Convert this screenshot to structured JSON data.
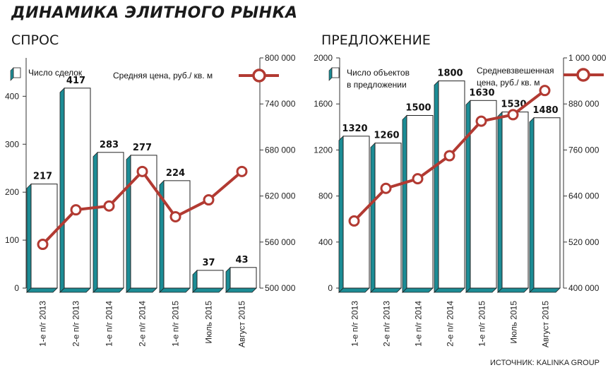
{
  "title": "ДИНАМИКА ЭЛИТНОГО РЫНКА",
  "source": "ИСТОЧНИК: KALINKA GROUP",
  "colors": {
    "bar_fill": "#ffffff",
    "bar_side": "#1c8c95",
    "bar_stroke": "#222222",
    "line": "#b23a32",
    "marker_fill": "#ffffff"
  },
  "chart_data": [
    {
      "type": "bar",
      "title": "СПРОС",
      "categories": [
        "1-е п/г 2013",
        "2-е п/г 2013",
        "1-е п/г 2014",
        "2-е п/г 2014",
        "1-е п/г 2015",
        "Июль 2015",
        "Август 2015"
      ],
      "left_ticks": [
        "0",
        "100",
        "200",
        "300",
        "400"
      ],
      "right_ticks": [
        "500 000",
        "560 000",
        "620 000",
        "680 000",
        "740 000",
        "800 000"
      ],
      "ylim_left": [
        0,
        480
      ],
      "ylim_right": [
        500000,
        800000
      ],
      "series": [
        {
          "name": "Число сделок",
          "type": "bar",
          "axis": "left",
          "values": [
            217,
            417,
            283,
            277,
            224,
            37,
            43
          ],
          "labels": [
            "217",
            "417",
            "283",
            "277",
            "224",
            "37",
            "43"
          ]
        },
        {
          "name": "Средняя цена, руб./ кв. м",
          "type": "line",
          "axis": "right",
          "values": [
            557000,
            602000,
            607000,
            652000,
            593000,
            615000,
            652000
          ]
        }
      ],
      "legend": [
        {
          "lines": [
            "Число сделок"
          ]
        },
        {
          "lines": [
            "Средняя цена, руб./ кв. м"
          ]
        }
      ]
    },
    {
      "type": "bar",
      "title": "ПРЕДЛОЖЕНИЕ",
      "categories": [
        "1-е п/г 2013",
        "2-е п/г 2013",
        "1-е п/г 2014",
        "2-е п/г 2014",
        "1-е п/г 2015",
        "Июль 2015",
        "Август 2015"
      ],
      "left_ticks": [
        "0",
        "400",
        "800",
        "1200",
        "1600",
        "2000"
      ],
      "right_ticks": [
        "400 000",
        "520 000",
        "640 000",
        "760 000",
        "880 000",
        "1 000 000"
      ],
      "ylim_left": [
        0,
        2000
      ],
      "ylim_right": [
        400000,
        1000000
      ],
      "series": [
        {
          "name": "Число объектов в предложении",
          "type": "bar",
          "axis": "left",
          "values": [
            1320,
            1260,
            1500,
            1800,
            1630,
            1530,
            1480
          ],
          "labels": [
            "1320",
            "1260",
            "1500",
            "1800",
            "1630",
            "1530",
            "1480"
          ]
        },
        {
          "name": "Средневзвешенная цена, руб./ кв. м",
          "type": "line",
          "axis": "right",
          "values": [
            575000,
            660000,
            685000,
            745000,
            835000,
            852000,
            915000
          ]
        }
      ],
      "legend": [
        {
          "lines": [
            "Число объектов",
            "в предложении"
          ]
        },
        {
          "lines": [
            "Средневзвешенная",
            "цена, руб./ кв. м"
          ]
        }
      ]
    }
  ]
}
